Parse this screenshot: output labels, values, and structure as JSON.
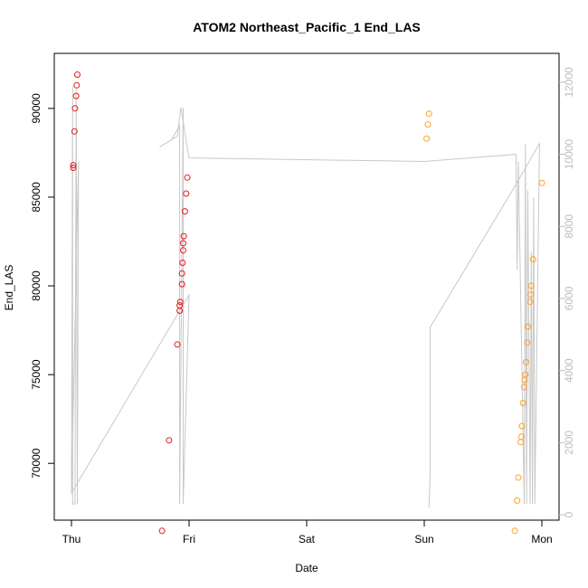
{
  "chart_data": {
    "type": "scatter",
    "title": "ATOM2 Northeast_Pacific_1 End_LAS",
    "xlabel": "Date",
    "ylabel": "End_LAS",
    "x_ticks": [
      "Thu",
      "Fri",
      "Sat",
      "Sun",
      "Mon"
    ],
    "ylim": [
      66800,
      93100
    ],
    "y_ticks": [
      70000,
      75000,
      80000,
      85000,
      90000
    ],
    "y2lim": [
      -150,
      12800
    ],
    "y2_ticks": [
      0,
      2000,
      4000,
      6000,
      8000,
      10000,
      12000
    ],
    "grid": false,
    "legend": "none",
    "colors": {
      "series_thu_fri": "#e41a1c",
      "series_sun_mon": "#ff9f29",
      "line": "#c8c8c8"
    },
    "series": [
      {
        "color": "#e41a1c",
        "points": [
          {
            "x": 0.015,
            "y": 86800
          },
          {
            "x": 0.015,
            "y": 86650
          },
          {
            "x": 0.025,
            "y": 88700
          },
          {
            "x": 0.03,
            "y": 90000
          },
          {
            "x": 0.04,
            "y": 90700
          },
          {
            "x": 0.045,
            "y": 91300
          },
          {
            "x": 0.05,
            "y": 91900
          },
          {
            "x": 0.77,
            "y": 66200
          },
          {
            "x": 0.83,
            "y": 71300
          },
          {
            "x": 0.9,
            "y": 76700
          },
          {
            "x": 0.92,
            "y": 78600
          },
          {
            "x": 0.92,
            "y": 78900
          },
          {
            "x": 0.925,
            "y": 79100
          },
          {
            "x": 0.94,
            "y": 80100
          },
          {
            "x": 0.94,
            "y": 80700
          },
          {
            "x": 0.945,
            "y": 81300
          },
          {
            "x": 0.95,
            "y": 82000
          },
          {
            "x": 0.95,
            "y": 82400
          },
          {
            "x": 0.955,
            "y": 82800
          },
          {
            "x": 0.965,
            "y": 84200
          },
          {
            "x": 0.975,
            "y": 85200
          },
          {
            "x": 0.985,
            "y": 86100
          }
        ]
      },
      {
        "color": "#ff9f29",
        "points": [
          {
            "x": 3.02,
            "y": 88300
          },
          {
            "x": 3.03,
            "y": 89100
          },
          {
            "x": 3.04,
            "y": 89700
          },
          {
            "x": 3.77,
            "y": 66200
          },
          {
            "x": 3.79,
            "y": 67900
          },
          {
            "x": 3.8,
            "y": 69200
          },
          {
            "x": 3.82,
            "y": 71200
          },
          {
            "x": 3.825,
            "y": 71500
          },
          {
            "x": 3.83,
            "y": 72100
          },
          {
            "x": 3.84,
            "y": 73400
          },
          {
            "x": 3.85,
            "y": 74300
          },
          {
            "x": 3.855,
            "y": 74700
          },
          {
            "x": 3.86,
            "y": 75000
          },
          {
            "x": 3.865,
            "y": 75700
          },
          {
            "x": 3.875,
            "y": 76800
          },
          {
            "x": 3.88,
            "y": 77700
          },
          {
            "x": 3.9,
            "y": 79100
          },
          {
            "x": 3.905,
            "y": 79500
          },
          {
            "x": 3.91,
            "y": 80000
          },
          {
            "x": 3.925,
            "y": 81500
          },
          {
            "x": 4.0,
            "y": 85800
          }
        ]
      }
    ],
    "line_series": {
      "axis": "right",
      "points": [
        [
          0.0,
          700
        ],
        [
          0.01,
          11900
        ],
        [
          0.01,
          300
        ],
        [
          0.03,
          300
        ],
        [
          0.04,
          11800
        ],
        [
          0.05,
          300
        ],
        [
          0.06,
          9800
        ],
        [
          0.0,
          600
        ],
        [
          1.0,
          6100
        ],
        [
          0.95,
          300
        ],
        [
          0.95,
          11300
        ],
        [
          0.92,
          300
        ],
        [
          0.92,
          10800
        ],
        [
          0.85,
          10400
        ],
        [
          0.75,
          10200
        ],
        [
          0.9,
          10500
        ],
        [
          0.93,
          11300
        ],
        [
          1.0,
          9900
        ],
        [
          3.0,
          9800
        ],
        [
          3.78,
          10000
        ],
        [
          3.79,
          6800
        ],
        [
          3.8,
          9800
        ],
        [
          3.85,
          300
        ],
        [
          3.86,
          10300
        ],
        [
          3.87,
          300
        ],
        [
          3.88,
          9000
        ],
        [
          3.9,
          300
        ],
        [
          3.91,
          7300
        ],
        [
          3.92,
          300
        ],
        [
          3.93,
          8800
        ],
        [
          3.94,
          300
        ],
        [
          3.98,
          10300
        ],
        [
          3.75,
          9000
        ],
        [
          3.05,
          5200
        ],
        [
          3.05,
          1100
        ],
        [
          3.04,
          200
        ]
      ]
    }
  }
}
